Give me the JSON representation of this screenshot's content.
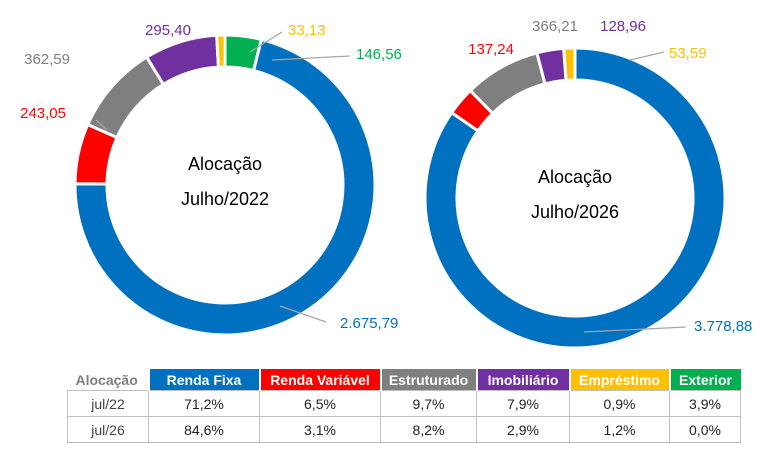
{
  "colors": {
    "renda_fixa": "#0070c0",
    "renda_variavel": "#ff0000",
    "estruturado": "#7f7f7f",
    "imobiliario": "#7030a0",
    "emprestimo": "#ffc000",
    "exterior": "#00b050"
  },
  "chart_data": [
    {
      "type": "pie",
      "title": "Alocação",
      "subtitle": "Julho/2022",
      "categories": [
        "Renda Fixa",
        "Renda Variável",
        "Estruturado",
        "Imobiliário",
        "Empréstimo",
        "Exterior"
      ],
      "values": [
        2675.79,
        243.05,
        362.59,
        295.4,
        33.13,
        146.56
      ],
      "labels": [
        "2.675,79",
        "243,05",
        "362,59",
        "295,40",
        "33,13",
        "146,56"
      ]
    },
    {
      "type": "pie",
      "title": "Alocação",
      "subtitle": "Julho/2026",
      "categories": [
        "Renda Fixa",
        "Renda Variável",
        "Estruturado",
        "Imobiliário",
        "Empréstimo",
        "Exterior"
      ],
      "values": [
        3778.88,
        137.24,
        366.21,
        128.96,
        53.59,
        0
      ],
      "labels": [
        "3.778,88",
        "137,24",
        "366,21",
        "128,96",
        "53,59",
        ""
      ]
    }
  ],
  "table": {
    "corner": "Alocação",
    "headers": [
      "Renda Fixa",
      "Renda Variável",
      "Estruturado",
      "Imobiliário",
      "Empréstimo",
      "Exterior"
    ],
    "rows": [
      {
        "label": "jul/22",
        "values": [
          "71,2%",
          "6,5%",
          "9,7%",
          "7,9%",
          "0,9%",
          "3,9%"
        ]
      },
      {
        "label": "jul/26",
        "values": [
          "84,6%",
          "3,1%",
          "8,2%",
          "2,9%",
          "1,2%",
          "0,0%"
        ]
      }
    ]
  }
}
